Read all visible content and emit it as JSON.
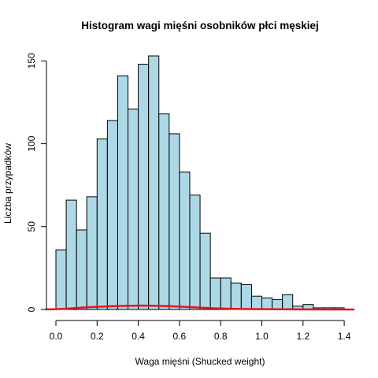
{
  "chart_data": {
    "type": "bar",
    "title": "Histogram wagi mięśni osobników płci męskiej",
    "xlabel": "Waga mięśni (Shucked weight)",
    "ylabel": "Liczba przypadków",
    "bin_width": 0.05,
    "bins_start": [
      0.0,
      0.05,
      0.1,
      0.15,
      0.2,
      0.25,
      0.3,
      0.35,
      0.4,
      0.45,
      0.5,
      0.55,
      0.6,
      0.65,
      0.7,
      0.75,
      0.8,
      0.85,
      0.9,
      0.95,
      1.0,
      1.05,
      1.1,
      1.15,
      1.2,
      1.25,
      1.3,
      1.35
    ],
    "values": [
      36,
      66,
      48,
      68,
      103,
      114,
      141,
      121,
      148,
      153,
      118,
      106,
      83,
      69,
      46,
      19,
      19,
      16,
      15,
      8,
      7,
      6,
      9,
      2,
      3,
      1,
      1,
      1
    ],
    "xlim": [
      0.0,
      1.45
    ],
    "ylim": [
      0,
      153
    ],
    "xticks": [
      "0.0",
      "0.2",
      "0.4",
      "0.6",
      "0.8",
      "1.0",
      "1.2",
      "1.4"
    ],
    "yticks": [
      "0",
      "50",
      "100",
      "150"
    ],
    "density_line": {
      "color": "#e8141a",
      "x": [
        -0.05,
        0.0,
        0.05,
        0.1,
        0.15,
        0.2,
        0.25,
        0.3,
        0.35,
        0.4,
        0.45,
        0.5,
        0.55,
        0.6,
        0.65,
        0.7,
        0.75,
        0.8,
        0.85,
        0.9,
        1.0,
        1.1,
        1.2,
        1.3,
        1.45
      ],
      "y": [
        0.05,
        0.2,
        0.5,
        0.9,
        1.3,
        1.6,
        1.9,
        2.1,
        2.2,
        2.3,
        2.3,
        2.2,
        2.0,
        1.7,
        1.4,
        1.1,
        0.8,
        0.6,
        0.4,
        0.3,
        0.2,
        0.1,
        0.05,
        0.03,
        0.0
      ]
    },
    "colors": {
      "bar_fill": "#add8e6",
      "bar_stroke": "#000000",
      "density": "#e8141a"
    },
    "grid": false,
    "legend": "none"
  }
}
